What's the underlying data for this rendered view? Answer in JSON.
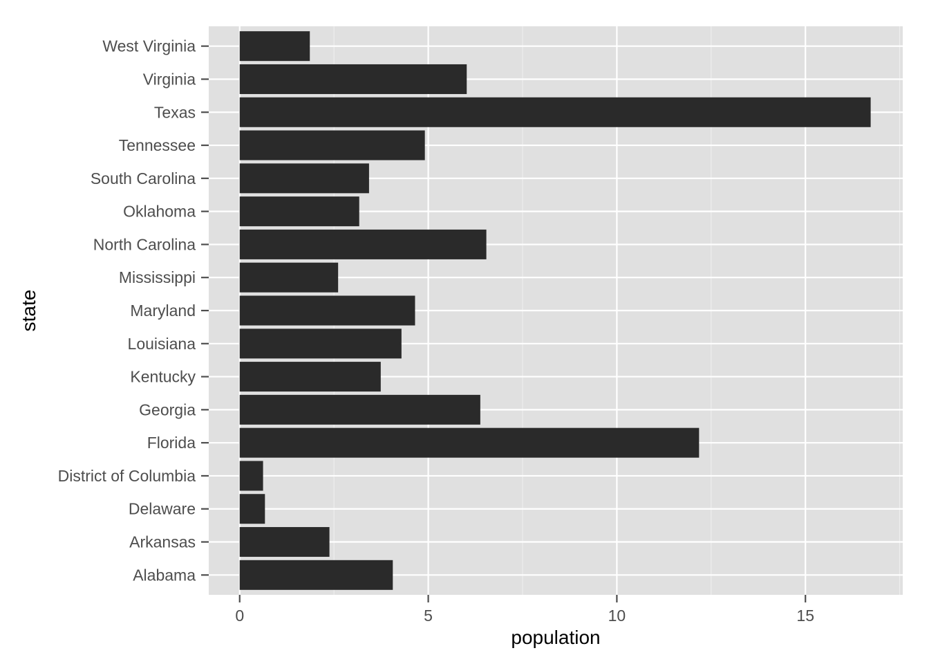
{
  "chart_data": {
    "type": "bar",
    "orientation": "horizontal",
    "xlabel": "population",
    "ylabel": "state",
    "xlim": [
      -0.82,
      17.58
    ],
    "xticks": [
      0,
      5,
      10,
      15
    ],
    "grid": true,
    "colors": {
      "panel": "#e0e0e0",
      "grid_major": "#ffffff",
      "grid_minor": "#f0f0f0",
      "bar": "#2a2a2a",
      "tick": "#4d4d4d",
      "text": "#4d4d4d",
      "title": "#000000"
    },
    "categories": [
      "Alabama",
      "Arkansas",
      "Delaware",
      "District of Columbia",
      "Florida",
      "Georgia",
      "Kentucky",
      "Louisiana",
      "Maryland",
      "Mississippi",
      "North Carolina",
      "Oklahoma",
      "South Carolina",
      "Tennessee",
      "Texas",
      "Virginia",
      "West Virginia"
    ],
    "values": [
      4.06,
      2.38,
      0.67,
      0.62,
      12.18,
      6.38,
      3.74,
      4.29,
      4.65,
      2.61,
      6.54,
      3.17,
      3.43,
      4.91,
      16.73,
      6.02,
      1.86
    ]
  }
}
